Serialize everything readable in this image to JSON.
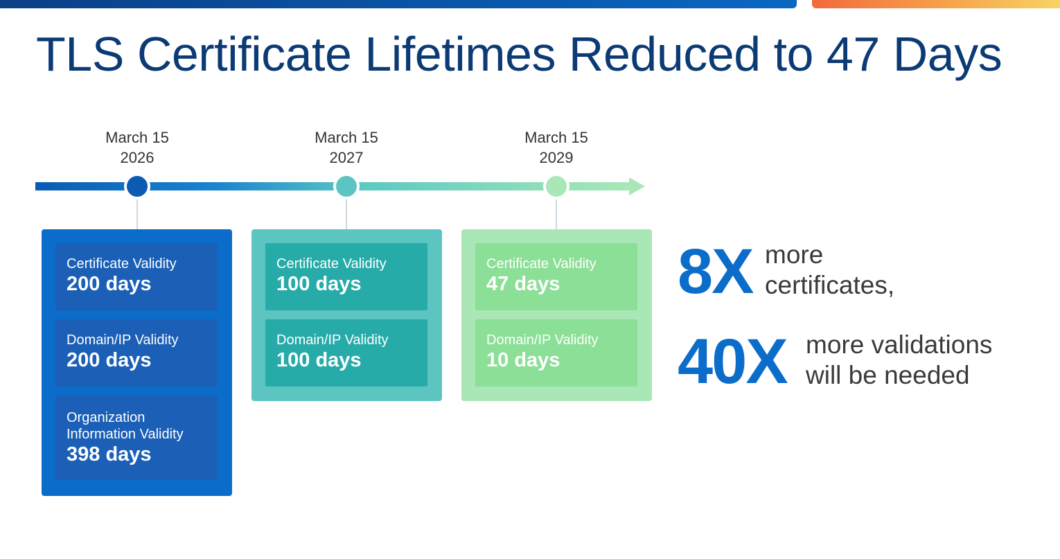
{
  "title": "TLS Certificate Lifetimes Reduced to 47 Days",
  "colors": {
    "brand_dark": "#0b3a74",
    "stage1": "#0b6dc9",
    "stage2": "#5cc5c1",
    "stage3": "#a9e8b6",
    "stat_blue": "#0b6dc9"
  },
  "timeline": [
    {
      "date_line1": "March 15",
      "date_line2": "2026",
      "items": [
        {
          "label": "Certificate Validity",
          "value": "200 days"
        },
        {
          "label": "Domain/IP Validity",
          "value": "200 days"
        },
        {
          "label_line1": "Organization",
          "label_line2": "Information Validity",
          "value": "398 days"
        }
      ]
    },
    {
      "date_line1": "March 15",
      "date_line2": "2027",
      "items": [
        {
          "label": "Certificate Validity",
          "value": "100 days"
        },
        {
          "label": "Domain/IP Validity",
          "value": "100 days"
        }
      ]
    },
    {
      "date_line1": "March 15",
      "date_line2": "2029",
      "items": [
        {
          "label": "Certificate Validity",
          "value": "47 days"
        },
        {
          "label": "Domain/IP Validity",
          "value": "10 days"
        }
      ]
    }
  ],
  "stats": [
    {
      "number": "8X",
      "line1": "more",
      "line2": "certificates,"
    },
    {
      "number": "40X",
      "line1": "more validations",
      "line2": "will be needed"
    }
  ]
}
